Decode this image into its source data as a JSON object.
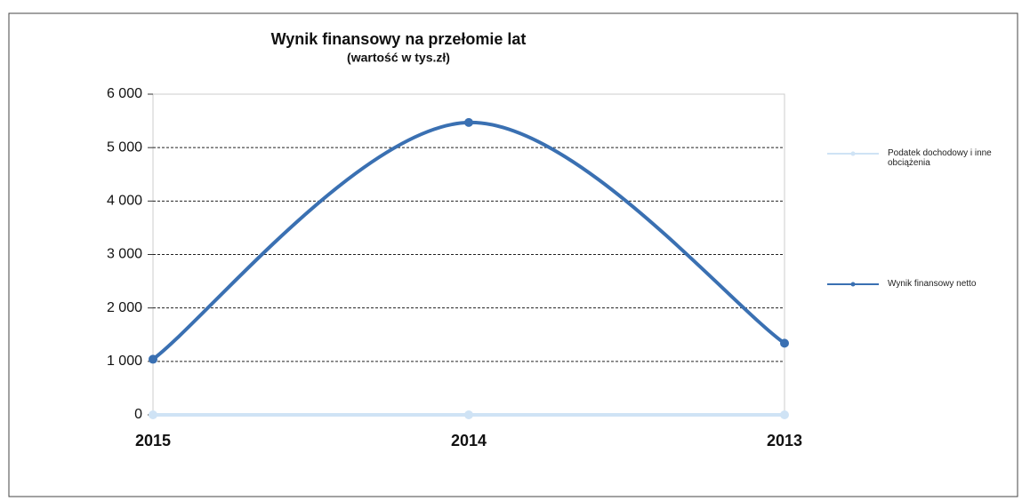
{
  "chart_data": {
    "type": "line",
    "title": "Wynik finansowy na przełomie lat",
    "subtitle": "(wartość w tys.zł)",
    "categories": [
      "2015",
      "2014",
      "2013"
    ],
    "series": [
      {
        "name": "Podatek dochodowy i inne obciążenia",
        "color": "#cfe3f5",
        "values": [
          0,
          0,
          0
        ]
      },
      {
        "name": "Wynik finansowy netto",
        "color": "#3a70b2",
        "values": [
          1040,
          5470,
          1340
        ]
      }
    ],
    "ylim": [
      0,
      6000
    ],
    "yticks": [
      0,
      {
        "value": 1000,
        "label": "1 000"
      },
      {
        "value": 2000,
        "label": "2 000"
      },
      {
        "value": 3000,
        "label": "3 000"
      },
      {
        "value": 4000,
        "label": "4 000"
      },
      {
        "value": 5000,
        "label": "5 000"
      },
      {
        "value": 6000,
        "label": "6 000"
      }
    ],
    "grid": true,
    "smooth": true,
    "legend": "right"
  }
}
